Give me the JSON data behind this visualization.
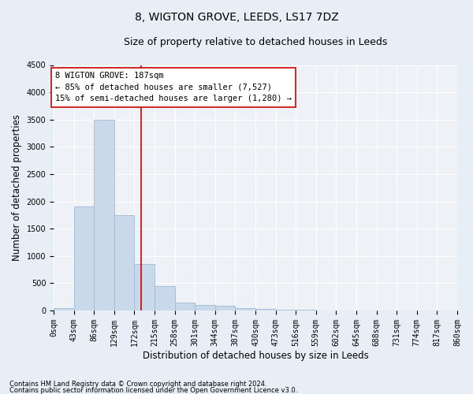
{
  "title": "8, WIGTON GROVE, LEEDS, LS17 7DZ",
  "subtitle": "Size of property relative to detached houses in Leeds",
  "xlabel": "Distribution of detached houses by size in Leeds",
  "ylabel": "Number of detached properties",
  "footnote1": "Contains HM Land Registry data © Crown copyright and database right 2024.",
  "footnote2": "Contains public sector information licensed under the Open Government Licence v3.0.",
  "bin_labels": [
    "0sqm",
    "43sqm",
    "86sqm",
    "129sqm",
    "172sqm",
    "215sqm",
    "258sqm",
    "301sqm",
    "344sqm",
    "387sqm",
    "430sqm",
    "473sqm",
    "516sqm",
    "559sqm",
    "602sqm",
    "645sqm",
    "688sqm",
    "731sqm",
    "774sqm",
    "817sqm",
    "860sqm"
  ],
  "bar_heights": [
    50,
    1900,
    3500,
    1750,
    850,
    450,
    150,
    100,
    80,
    50,
    30,
    15,
    10,
    5,
    3,
    2,
    1,
    1,
    0,
    0
  ],
  "bar_color": "#c9d9ea",
  "bar_edge_color": "#a0bcd8",
  "annotation_line_color": "#cc0000",
  "annotation_box_color": "#ffffff",
  "annotation_box_edge_color": "#cc0000",
  "annotation_box_text": "8 WIGTON GROVE: 187sqm\n← 85% of detached houses are smaller (7,527)\n15% of semi-detached houses are larger (1,280) →",
  "ylim": [
    0,
    4500
  ],
  "yticks": [
    0,
    500,
    1000,
    1500,
    2000,
    2500,
    3000,
    3500,
    4000,
    4500
  ],
  "background_color": "#e8eef5",
  "plot_background_color": "#eef2f7",
  "grid_color": "#ffffff",
  "title_fontsize": 10,
  "subtitle_fontsize": 9,
  "axis_label_fontsize": 8.5,
  "tick_fontsize": 7,
  "annotation_fontsize": 7.5,
  "footnote_fontsize": 6
}
